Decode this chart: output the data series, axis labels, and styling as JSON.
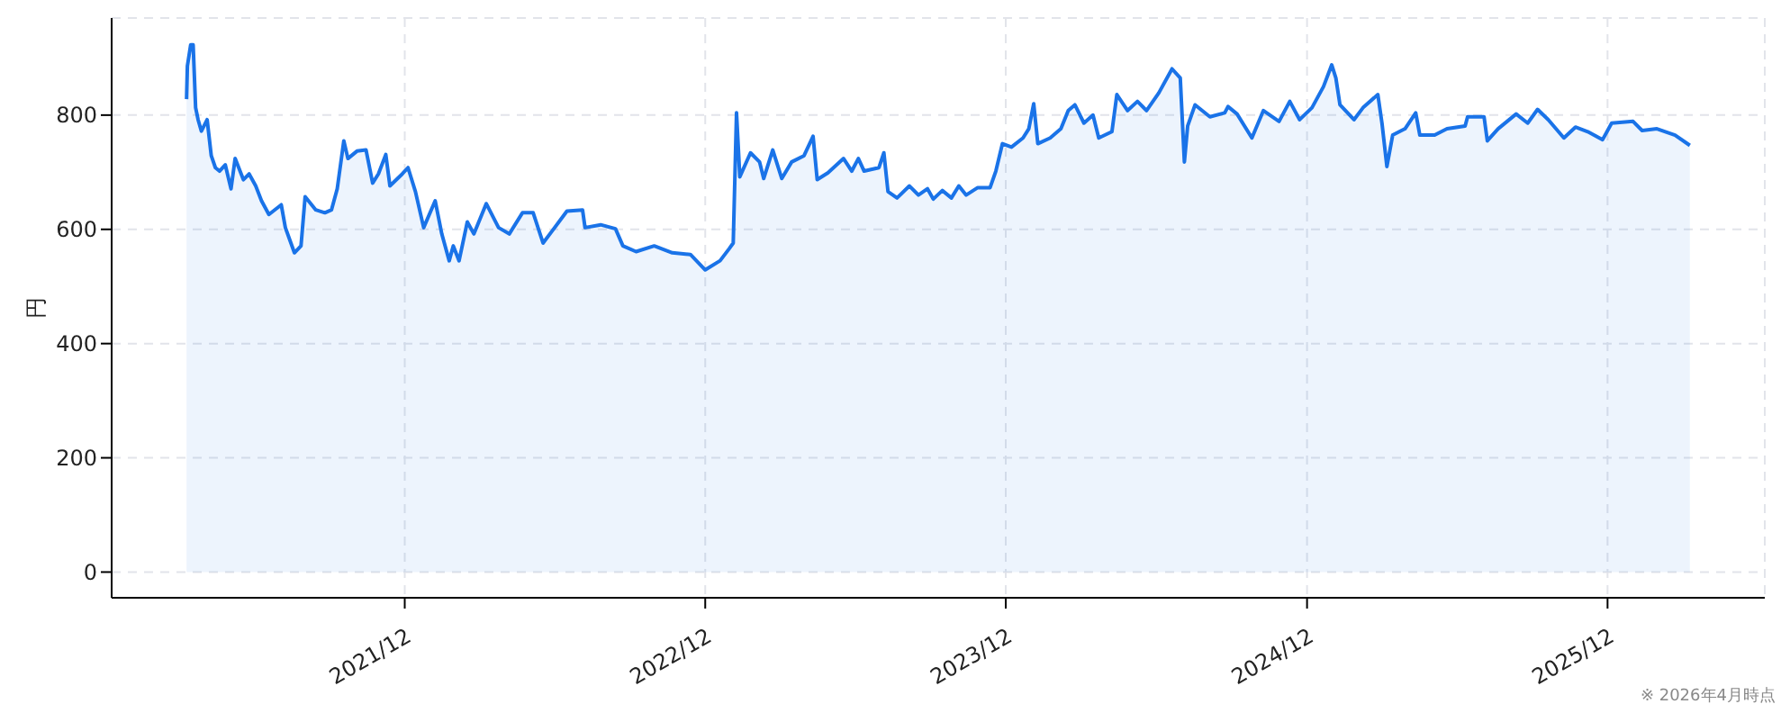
{
  "chart_data": {
    "type": "area",
    "ylabel": "円",
    "annotations": [
      "※ 2026年4月時点"
    ],
    "xlim": [
      "2020-12-10",
      "2026-06-10"
    ],
    "xticks": [
      {
        "value": "2021-12-01",
        "label": "2021/12"
      },
      {
        "value": "2022-12-01",
        "label": "2022/12"
      },
      {
        "value": "2023-12-01",
        "label": "2023/12"
      },
      {
        "value": "2024-12-01",
        "label": "2024/12"
      },
      {
        "value": "2025-12-01",
        "label": "2025/12"
      }
    ],
    "ylim": [
      -45,
      970
    ],
    "yticks": [
      0,
      200,
      400,
      600,
      800
    ],
    "grid": true,
    "line_style": "solid",
    "series": [
      {
        "color": "#1a73e8",
        "x": [
          "2021-03-11",
          "2021-03-12",
          "2021-03-16",
          "2021-03-19",
          "2021-03-22",
          "2021-03-25",
          "2021-03-29",
          "2021-04-05",
          "2021-04-10",
          "2021-04-15",
          "2021-04-20",
          "2021-04-27",
          "2021-05-04",
          "2021-05-09",
          "2021-05-19",
          "2021-05-26",
          "2021-06-03",
          "2021-06-10",
          "2021-06-19",
          "2021-07-04",
          "2021-07-09",
          "2021-07-20",
          "2021-07-28",
          "2021-08-02",
          "2021-08-15",
          "2021-08-26",
          "2021-09-03",
          "2021-09-10",
          "2021-09-18",
          "2021-09-23",
          "2021-10-04",
          "2021-10-15",
          "2021-10-23",
          "2021-10-30",
          "2021-11-08",
          "2021-11-13",
          "2021-11-28",
          "2021-12-05",
          "2021-12-14",
          "2021-12-24",
          "2022-01-07",
          "2022-01-15",
          "2022-01-24",
          "2022-01-29",
          "2022-02-05",
          "2022-02-15",
          "2022-02-23",
          "2022-03-10",
          "2022-03-25",
          "2022-04-07",
          "2022-04-23",
          "2022-05-06",
          "2022-05-18",
          "2022-05-29",
          "2022-06-16",
          "2022-07-05",
          "2022-07-08",
          "2022-07-27",
          "2022-08-14",
          "2022-08-23",
          "2022-09-08",
          "2022-09-30",
          "2022-10-22",
          "2022-11-13",
          "2022-12-01",
          "2022-12-19",
          "2022-12-30",
          "2023-01-04",
          "2023-01-08",
          "2023-01-12",
          "2023-01-25",
          "2023-02-05",
          "2023-02-10",
          "2023-02-21",
          "2023-03-04",
          "2023-03-16",
          "2023-03-31",
          "2023-04-11",
          "2023-04-16",
          "2023-04-29",
          "2023-05-18",
          "2023-05-28",
          "2023-06-05",
          "2023-06-12",
          "2023-06-30",
          "2023-07-06",
          "2023-07-11",
          "2023-07-22",
          "2023-08-06",
          "2023-08-17",
          "2023-08-28",
          "2023-09-04",
          "2023-09-15",
          "2023-09-26",
          "2023-10-05",
          "2023-10-14",
          "2023-10-28",
          "2023-11-12",
          "2023-11-19",
          "2023-11-27",
          "2023-12-08",
          "2023-12-22",
          "2023-12-29",
          "2024-01-04",
          "2024-01-09",
          "2024-01-24",
          "2024-02-06",
          "2024-02-15",
          "2024-02-23",
          "2024-03-05",
          "2024-03-16",
          "2024-03-23",
          "2024-04-08",
          "2024-04-14",
          "2024-04-27",
          "2024-05-09",
          "2024-05-20",
          "2024-06-04",
          "2024-06-20",
          "2024-06-30",
          "2024-07-05",
          "2024-07-09",
          "2024-07-18",
          "2024-08-05",
          "2024-08-23",
          "2024-08-27",
          "2024-09-07",
          "2024-09-25",
          "2024-10-09",
          "2024-10-28",
          "2024-11-10",
          "2024-11-22",
          "2024-12-07",
          "2024-12-21",
          "2024-12-31",
          "2025-01-05",
          "2025-01-10",
          "2025-01-27",
          "2025-02-07",
          "2025-02-25",
          "2025-03-02",
          "2025-03-08",
          "2025-03-15",
          "2025-03-30",
          "2025-04-12",
          "2025-04-17",
          "2025-05-05",
          "2025-05-20",
          "2025-06-11",
          "2025-06-14",
          "2025-07-04",
          "2025-07-08",
          "2025-07-21",
          "2025-08-12",
          "2025-08-26",
          "2025-09-07",
          "2025-09-20",
          "2025-10-09",
          "2025-10-23",
          "2025-11-07",
          "2025-11-25",
          "2025-12-06",
          "2026-01-01",
          "2026-01-12",
          "2026-01-30",
          "2026-02-21",
          "2026-03-11"
        ],
        "values": [
          828,
          886,
          923,
          923,
          813,
          792,
          772,
          792,
          729,
          708,
          702,
          713,
          671,
          724,
          687,
          697,
          676,
          650,
          626,
          643,
          603,
          559,
          571,
          657,
          634,
          629,
          634,
          671,
          755,
          724,
          737,
          739,
          681,
          697,
          731,
          676,
          697,
          708,
          666,
          603,
          650,
          592,
          545,
          571,
          545,
          613,
          592,
          645,
          603,
          592,
          629,
          629,
          576,
          597,
          632,
          634,
          603,
          608,
          601,
          571,
          561,
          571,
          559,
          556,
          529,
          545,
          566,
          576,
          804,
          692,
          734,
          718,
          689,
          739,
          689,
          718,
          729,
          763,
          687,
          699,
          724,
          702,
          724,
          702,
          708,
          734,
          666,
          655,
          676,
          660,
          671,
          653,
          668,
          655,
          676,
          660,
          673,
          673,
          702,
          750,
          744,
          760,
          776,
          820,
          750,
          760,
          776,
          808,
          818,
          786,
          800,
          760,
          771,
          836,
          808,
          824,
          808,
          839,
          881,
          865,
          718,
          781,
          818,
          797,
          804,
          815,
          802,
          760,
          808,
          789,
          824,
          792,
          813,
          850,
          888,
          865,
          818,
          792,
          813,
          836,
          786,
          710,
          765,
          776,
          804,
          765,
          765,
          776,
          781,
          797,
          797,
          755,
          776,
          802,
          786,
          810,
          792,
          760,
          779,
          771,
          757,
          786,
          789,
          773,
          776,
          765,
          747
        ]
      }
    ]
  }
}
